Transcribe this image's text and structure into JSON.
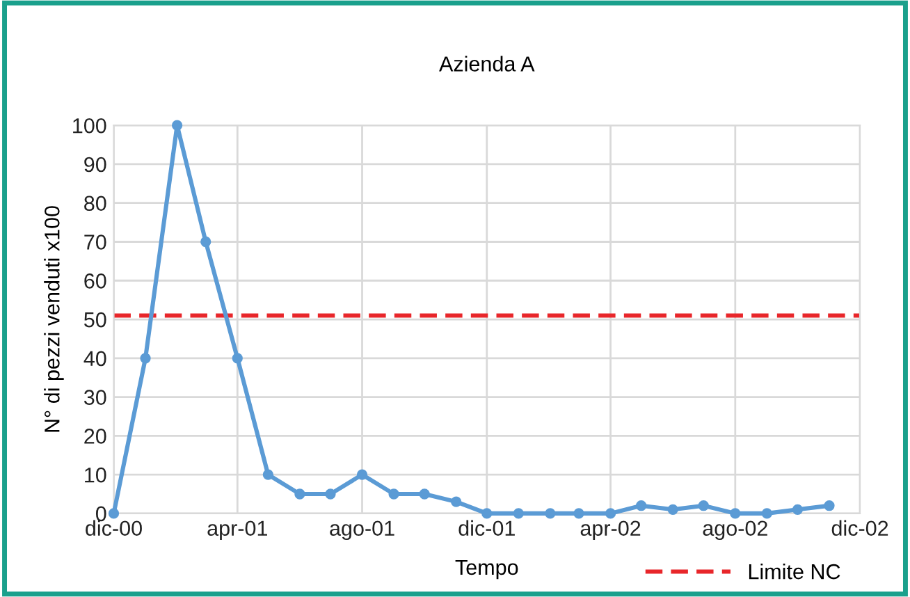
{
  "chart_data": {
    "type": "line",
    "title": "Azienda A",
    "xlabel": "Tempo",
    "ylabel": "N° di pezzi venduti x100",
    "x": [
      "2000-12",
      "2001-01",
      "2001-02",
      "2001-03",
      "2001-04",
      "2001-05",
      "2001-06",
      "2001-07",
      "2001-08",
      "2001-09",
      "2001-10",
      "2001-11",
      "2001-12",
      "2002-01",
      "2002-02",
      "2002-03",
      "2002-04",
      "2002-05",
      "2002-06",
      "2002-07",
      "2002-08",
      "2002-09",
      "2002-10",
      "2002-11"
    ],
    "series": [
      {
        "color": "#5b9bd5",
        "values": [
          0,
          40,
          100,
          70,
          40,
          10,
          5,
          5,
          10,
          5,
          5,
          3,
          0,
          0,
          0,
          0,
          0,
          2,
          1,
          2,
          0,
          0,
          1,
          2
        ]
      }
    ],
    "xlim": [
      "2000-12",
      "2002-12"
    ],
    "xticks": [
      {
        "value": "2000-12",
        "label": "dic-00"
      },
      {
        "value": "2001-04",
        "label": "apr-01"
      },
      {
        "value": "2001-08",
        "label": "ago-01"
      },
      {
        "value": "2001-12",
        "label": "dic-01"
      },
      {
        "value": "2002-04",
        "label": "apr-02"
      },
      {
        "value": "2002-08",
        "label": "ago-02"
      },
      {
        "value": "2002-12",
        "label": "dic-02"
      }
    ],
    "ylim": [
      0,
      100
    ],
    "yticks": [
      0,
      10,
      20,
      30,
      40,
      50,
      60,
      70,
      80,
      90,
      100
    ],
    "ref_lines": [
      {
        "axis": "y",
        "value": 51,
        "label": "Limite NC",
        "color": "#e8262a",
        "line_style": "dashed"
      }
    ],
    "grid": true,
    "legend": "bottom right",
    "marker": "circle",
    "line_style": "solid"
  }
}
